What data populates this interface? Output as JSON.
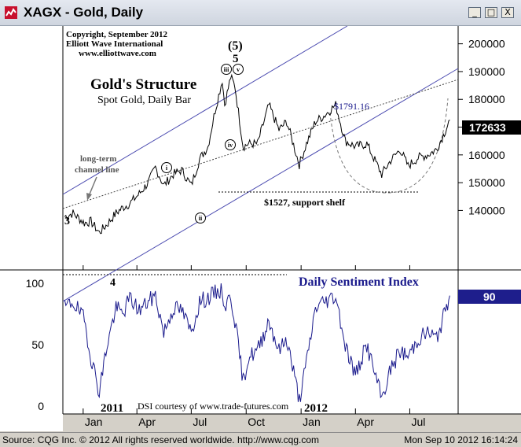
{
  "window": {
    "title": "XAGX - Gold, Daily",
    "buttons": [
      "_",
      "□",
      "X"
    ],
    "icon": "cqg-chart-icon"
  },
  "status": {
    "left": "Source: CQG Inc. © 2012 All rights reserved worldwide. http://www.cqg.com",
    "right": "Mon Sep 10 2012 16:14:24"
  },
  "annotations": {
    "copyright": [
      "Copyright, September 2012",
      "Elliott Wave International",
      "www.elliottwave.com"
    ],
    "structure_title": "Gold's Structure",
    "structure_subtitle": "Spot Gold, Daily Bar",
    "channel_label": [
      "long-term",
      "channel line"
    ],
    "wave_top_paren": "(5)",
    "wave_top": "5",
    "wave_i": "i",
    "wave_ii": "ii",
    "wave_iii": "iii",
    "wave_iv": "iv",
    "wave_v": "v",
    "wave_3": "3",
    "wave_4": "4",
    "peak_label": "$1791.16",
    "support_label": "$1527, support shelf",
    "dsi_title": "Daily Sentiment Index",
    "dsi_credit": "DSI courtesy of www.trade-futures.com",
    "year_2011": "2011",
    "year_2012": "2012"
  },
  "colors": {
    "price": "#000000",
    "dsi": "#1a1a8c",
    "channel": "#4b4bb0",
    "price_badge_bg": "#000000",
    "dsi_badge_bg": "#1e1e8c"
  },
  "chart_data": [
    {
      "type": "line",
      "name": "price",
      "x": [
        "2010-12-01",
        "2010-12-15",
        "2011-01-03",
        "2011-01-14",
        "2011-01-28",
        "2011-02-10",
        "2011-02-25",
        "2011-03-08",
        "2011-03-20",
        "2011-04-05",
        "2011-04-20",
        "2011-05-02",
        "2011-05-16",
        "2011-06-01",
        "2011-06-15",
        "2011-07-01",
        "2011-07-15",
        "2011-07-29",
        "2011-08-10",
        "2011-08-22",
        "2011-08-26",
        "2011-09-05",
        "2011-09-12",
        "2011-09-26",
        "2011-10-05",
        "2011-10-20",
        "2011-11-08",
        "2011-11-25",
        "2011-12-08",
        "2011-12-29",
        "2012-01-10",
        "2012-01-25",
        "2012-02-08",
        "2012-02-28",
        "2012-03-15",
        "2012-04-01",
        "2012-04-20",
        "2012-05-15",
        "2012-05-30",
        "2012-06-15",
        "2012-06-28",
        "2012-07-15",
        "2012-07-31",
        "2012-08-15",
        "2012-08-28",
        "2012-09-06"
      ],
      "y": [
        1378,
        1390,
        1355,
        1360,
        1320,
        1350,
        1390,
        1410,
        1425,
        1460,
        1500,
        1555,
        1490,
        1530,
        1545,
        1490,
        1585,
        1630,
        1760,
        1870,
        1780,
        1880,
        1850,
        1630,
        1640,
        1640,
        1780,
        1690,
        1720,
        1565,
        1640,
        1720,
        1740,
        1780,
        1650,
        1630,
        1640,
        1530,
        1580,
        1620,
        1560,
        1590,
        1600,
        1620,
        1680,
        1726
      ],
      "ylim": [
        1200,
        2050
      ],
      "yticks": [
        1400,
        1500,
        1600,
        1700,
        1800,
        1900,
        2000
      ],
      "ytick_labels": [
        "140000",
        "150000",
        "160000",
        "170000",
        "180000",
        "190000",
        "200000"
      ],
      "last_value": "172633"
    },
    {
      "type": "line",
      "name": "Daily Sentiment Index",
      "x": [
        "2010-12-01",
        "2010-12-15",
        "2011-01-03",
        "2011-01-14",
        "2011-01-28",
        "2011-02-10",
        "2011-02-25",
        "2011-03-08",
        "2011-03-20",
        "2011-04-05",
        "2011-04-20",
        "2011-05-02",
        "2011-05-16",
        "2011-06-01",
        "2011-06-15",
        "2011-07-01",
        "2011-07-15",
        "2011-07-29",
        "2011-08-10",
        "2011-08-22",
        "2011-08-26",
        "2011-09-05",
        "2011-09-12",
        "2011-09-26",
        "2011-10-05",
        "2011-10-20",
        "2011-11-08",
        "2011-11-25",
        "2011-12-08",
        "2011-12-29",
        "2012-01-10",
        "2012-01-25",
        "2012-02-08",
        "2012-02-28",
        "2012-03-15",
        "2012-04-01",
        "2012-04-20",
        "2012-05-15",
        "2012-05-30",
        "2012-06-15",
        "2012-06-28",
        "2012-07-15",
        "2012-07-31",
        "2012-08-15",
        "2012-08-28",
        "2012-09-06"
      ],
      "y": [
        80,
        85,
        70,
        40,
        12,
        50,
        80,
        75,
        88,
        78,
        85,
        90,
        60,
        80,
        78,
        60,
        85,
        88,
        92,
        95,
        80,
        90,
        70,
        20,
        40,
        45,
        70,
        45,
        55,
        5,
        35,
        80,
        85,
        90,
        50,
        25,
        50,
        6,
        30,
        45,
        40,
        55,
        60,
        55,
        75,
        90
      ],
      "ylim": [
        0,
        100
      ],
      "yticks": [
        0,
        50,
        100
      ],
      "ytick_labels": [
        "0",
        "50",
        "100"
      ],
      "last_value": "90"
    }
  ],
  "x_axis": {
    "tick_labels": [
      "Jan",
      "Apr",
      "Jul",
      "Oct",
      "Jan",
      "Apr",
      "Jul"
    ],
    "tick_dates": [
      "2011-01-01",
      "2011-04-01",
      "2011-07-01",
      "2011-10-01",
      "2012-01-01",
      "2012-04-01",
      "2012-07-01"
    ],
    "start": "2010-11-28",
    "end": "2012-09-20"
  }
}
